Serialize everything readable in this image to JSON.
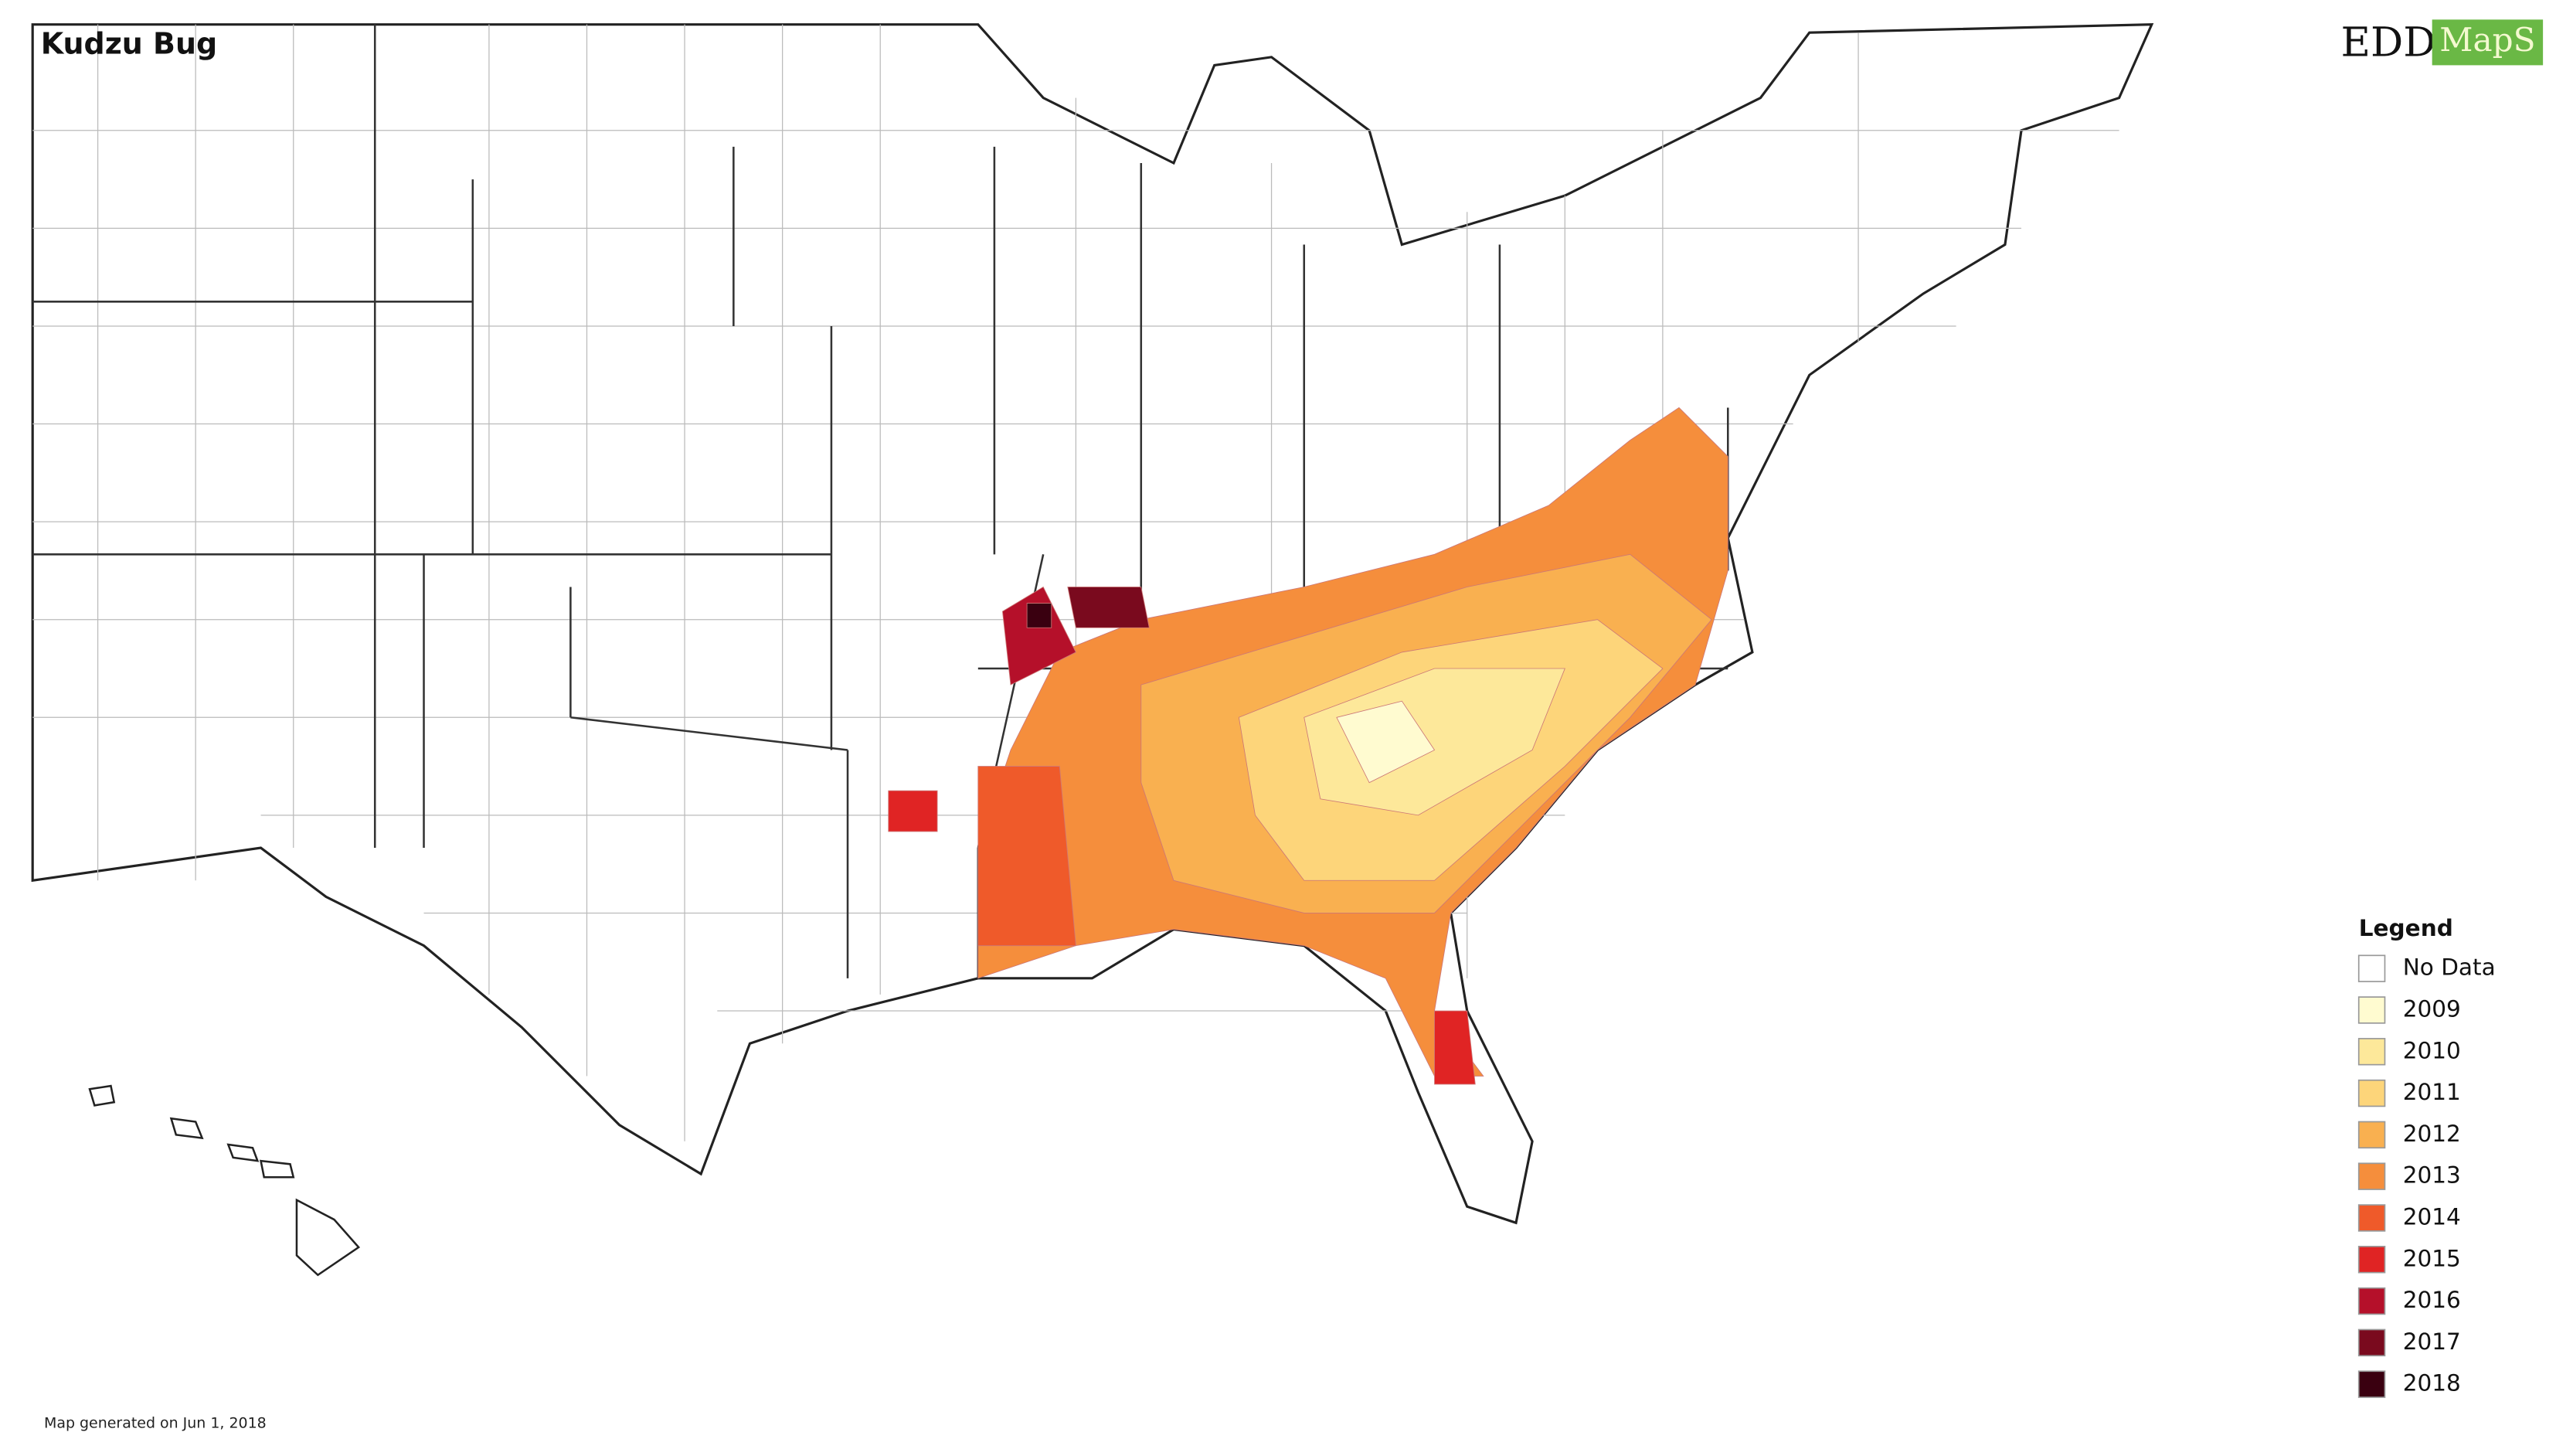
{
  "header": {
    "title": "Kudzu Bug"
  },
  "logo": {
    "left": "EDD",
    "right": "MapS"
  },
  "legend": {
    "title": "Legend",
    "items": [
      {
        "label": "No Data",
        "color": "#ffffff"
      },
      {
        "label": "2009",
        "color": "#fffbd0"
      },
      {
        "label": "2010",
        "color": "#fde89a"
      },
      {
        "label": "2011",
        "color": "#fdd57a"
      },
      {
        "label": "2012",
        "color": "#f9b050"
      },
      {
        "label": "2013",
        "color": "#f58e3c"
      },
      {
        "label": "2014",
        "color": "#ef5a2a"
      },
      {
        "label": "2015",
        "color": "#e02424"
      },
      {
        "label": "2016",
        "color": "#b5102a"
      },
      {
        "label": "2017",
        "color": "#7a0a1e"
      },
      {
        "label": "2018",
        "color": "#3a0010"
      }
    ]
  },
  "footer": "Map generated on Jun 1, 2018"
}
